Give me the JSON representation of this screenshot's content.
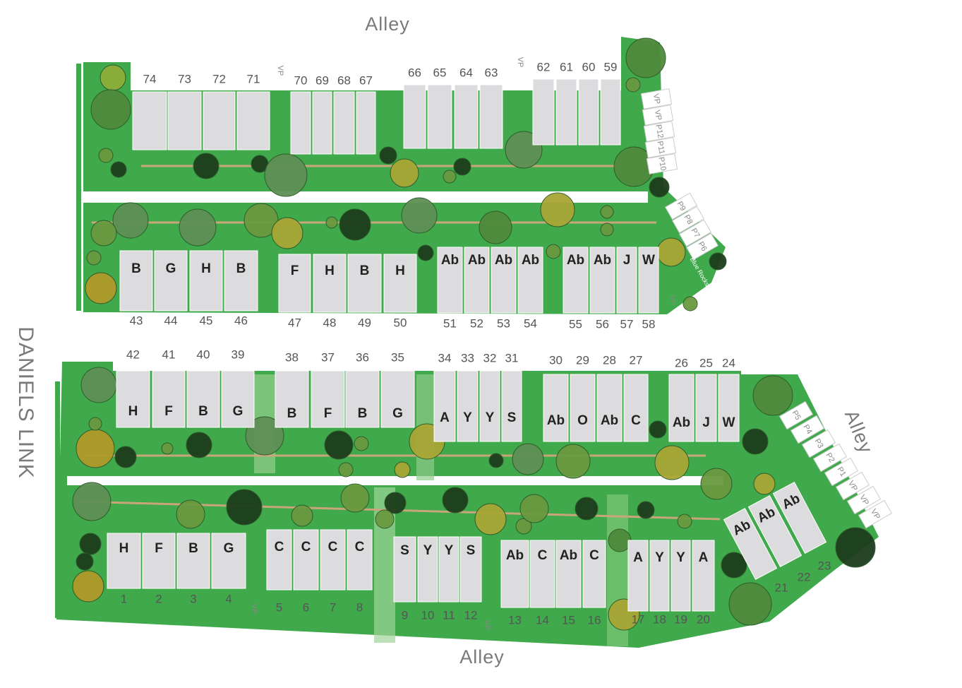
{
  "streets": {
    "north_alley": "Alley",
    "south_alley": "Alley",
    "east_alley": "Alley",
    "west_road": "DANIELS LINK"
  },
  "top_block": {
    "north_lots": [
      {
        "number": "74"
      },
      {
        "number": "73"
      },
      {
        "number": "72"
      },
      {
        "number": "71"
      },
      {
        "number": "70"
      },
      {
        "number": "69"
      },
      {
        "number": "68"
      },
      {
        "number": "67"
      },
      {
        "number": "66"
      },
      {
        "number": "65"
      },
      {
        "number": "64"
      },
      {
        "number": "63"
      },
      {
        "number": "62"
      },
      {
        "number": "61"
      },
      {
        "number": "60"
      },
      {
        "number": "59"
      }
    ],
    "south_lots": [
      {
        "number": "43",
        "type": "B"
      },
      {
        "number": "44",
        "type": "G"
      },
      {
        "number": "45",
        "type": "H"
      },
      {
        "number": "46",
        "type": "B"
      },
      {
        "number": "47",
        "type": "F"
      },
      {
        "number": "48",
        "type": "H"
      },
      {
        "number": "49",
        "type": "B"
      },
      {
        "number": "50",
        "type": "H"
      },
      {
        "number": "51",
        "type": "Ab"
      },
      {
        "number": "52",
        "type": "Ab"
      },
      {
        "number": "53",
        "type": "Ab"
      },
      {
        "number": "54",
        "type": "Ab"
      },
      {
        "number": "55",
        "type": "Ab"
      },
      {
        "number": "56",
        "type": "Ab"
      },
      {
        "number": "57",
        "type": "J"
      },
      {
        "number": "58",
        "type": "W"
      }
    ]
  },
  "bottom_block": {
    "north_lots": [
      {
        "number": "42",
        "type": "H"
      },
      {
        "number": "41",
        "type": "F"
      },
      {
        "number": "40",
        "type": "B"
      },
      {
        "number": "39",
        "type": "G"
      },
      {
        "number": "38",
        "type": "B"
      },
      {
        "number": "37",
        "type": "F"
      },
      {
        "number": "36",
        "type": "B"
      },
      {
        "number": "35",
        "type": "G"
      },
      {
        "number": "34",
        "type": "A"
      },
      {
        "number": "33",
        "type": "Y"
      },
      {
        "number": "32",
        "type": "Y"
      },
      {
        "number": "31",
        "type": "S"
      },
      {
        "number": "30",
        "type": "Ab"
      },
      {
        "number": "29",
        "type": "O"
      },
      {
        "number": "28",
        "type": "Ab"
      },
      {
        "number": "27",
        "type": "C"
      },
      {
        "number": "26",
        "type": "Ab"
      },
      {
        "number": "25",
        "type": "J"
      },
      {
        "number": "24",
        "type": "W"
      }
    ],
    "south_lots": [
      {
        "number": "1",
        "type": "H"
      },
      {
        "number": "2",
        "type": "F"
      },
      {
        "number": "3",
        "type": "B"
      },
      {
        "number": "4",
        "type": "G"
      },
      {
        "number": "5",
        "type": "C"
      },
      {
        "number": "6",
        "type": "C"
      },
      {
        "number": "7",
        "type": "C"
      },
      {
        "number": "8",
        "type": "C"
      },
      {
        "number": "9",
        "type": "S"
      },
      {
        "number": "10",
        "type": "Y"
      },
      {
        "number": "11",
        "type": "Y"
      },
      {
        "number": "12",
        "type": "S"
      },
      {
        "number": "13",
        "type": "Ab"
      },
      {
        "number": "14",
        "type": "C"
      },
      {
        "number": "15",
        "type": "Ab"
      },
      {
        "number": "16",
        "type": "C"
      },
      {
        "number": "17",
        "type": "A"
      },
      {
        "number": "18",
        "type": "Y"
      },
      {
        "number": "19",
        "type": "Y"
      },
      {
        "number": "20",
        "type": "A"
      },
      {
        "number": "21",
        "type": "Ab"
      },
      {
        "number": "22",
        "type": "Ab"
      },
      {
        "number": "23",
        "type": "Ab"
      }
    ]
  },
  "parking": {
    "north": [
      "VP",
      "VP",
      "P12",
      "P11",
      "P10"
    ],
    "middle": [
      "P9",
      "P8",
      "P7",
      "P6"
    ],
    "east": [
      "P5",
      "P4",
      "P3",
      "P2",
      "P1",
      "VP",
      "VP",
      "VP"
    ]
  },
  "visitor_parking": [
    "VP",
    "VP",
    "VP",
    "VP",
    "VP"
  ],
  "amenity": "Blue Rocks"
}
